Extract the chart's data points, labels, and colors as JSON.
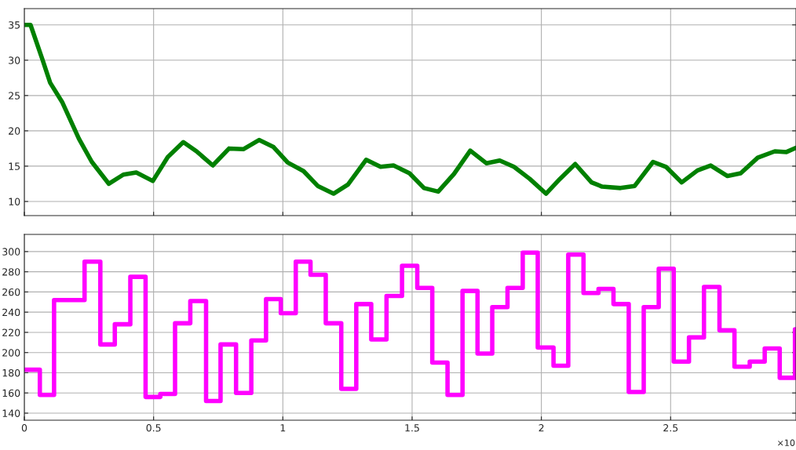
{
  "chart_data": [
    {
      "type": "line",
      "x": [
        0,
        0.024,
        0.07,
        0.1,
        0.146,
        0.211,
        0.261,
        0.327,
        0.383,
        0.433,
        0.497,
        0.555,
        0.615,
        0.666,
        0.729,
        0.792,
        0.847,
        0.908,
        0.964,
        1.019,
        1.08,
        1.135,
        1.196,
        1.252,
        1.322,
        1.378,
        1.428,
        1.49,
        1.546,
        1.601,
        1.662,
        1.725,
        1.788,
        1.839,
        1.894,
        1.955,
        2.018,
        2.072,
        2.131,
        2.194,
        2.235,
        2.306,
        2.361,
        2.432,
        2.482,
        2.543,
        2.604,
        2.655,
        2.72,
        2.771,
        2.837,
        2.903,
        2.948,
        2.985
      ],
      "series": [
        {
          "color": "#008000",
          "values": [
            35,
            35,
            30.1,
            26.8,
            24.1,
            18.9,
            15.6,
            12.5,
            13.8,
            14.1,
            12.9,
            16.3,
            18.4,
            17.1,
            15.1,
            17.5,
            17.4,
            18.7,
            17.7,
            15.5,
            14.3,
            12.2,
            11.1,
            12.4,
            15.9,
            14.9,
            15.1,
            14,
            11.9,
            11.4,
            13.9,
            17.2,
            15.4,
            15.8,
            14.9,
            13.2,
            11.1,
            13.2,
            15.3,
            12.7,
            12.1,
            11.9,
            12.2,
            15.6,
            14.9,
            12.7,
            14.4,
            15.1,
            13.6,
            14,
            16.2,
            17.1,
            17,
            17.6
          ]
        }
      ],
      "xlim": [
        0,
        2.985
      ],
      "xticks": [
        0,
        0.5,
        1,
        1.5,
        2,
        2.5
      ],
      "ylim": [
        8,
        37.3
      ],
      "yticks": [
        10,
        15,
        20,
        25,
        30,
        35
      ],
      "grid": true,
      "tick_labels": "y"
    },
    {
      "type": "step",
      "x": [
        0,
        0.06,
        0.115,
        0.233,
        0.294,
        0.35,
        0.41,
        0.469,
        0.526,
        0.583,
        0.642,
        0.703,
        0.759,
        0.819,
        0.878,
        0.935,
        0.992,
        1.05,
        1.107,
        1.166,
        1.226,
        1.284,
        1.342,
        1.401,
        1.461,
        1.52,
        1.578,
        1.637,
        1.695,
        1.753,
        1.81,
        1.869,
        1.928,
        1.986,
        2.047,
        2.104,
        2.163,
        2.221,
        2.279,
        2.338,
        2.396,
        2.454,
        2.512,
        2.571,
        2.629,
        2.689,
        2.747,
        2.806,
        2.864,
        2.922,
        2.981,
        2.985
      ],
      "series": [
        {
          "color": "#ff00ff",
          "values": [
            183,
            158,
            252,
            290,
            208,
            228,
            275,
            156,
            159,
            229,
            251,
            152,
            208,
            160,
            212,
            253,
            239,
            290,
            277,
            229,
            164,
            248,
            213,
            256,
            286,
            264,
            190,
            158,
            261,
            199,
            245,
            264,
            299,
            205,
            187,
            297,
            259,
            263,
            248,
            161,
            245,
            283,
            191,
            215,
            265,
            222,
            186,
            191,
            204,
            175,
            223,
            223
          ]
        }
      ],
      "xlim": [
        0,
        2.985
      ],
      "xticks": [
        0,
        0.5,
        1,
        1.5,
        2,
        2.5
      ],
      "ylim": [
        133,
        317
      ],
      "yticks": [
        140,
        160,
        180,
        200,
        220,
        240,
        260,
        280,
        300
      ],
      "grid": true,
      "annotations": [
        "×10"
      ]
    }
  ]
}
